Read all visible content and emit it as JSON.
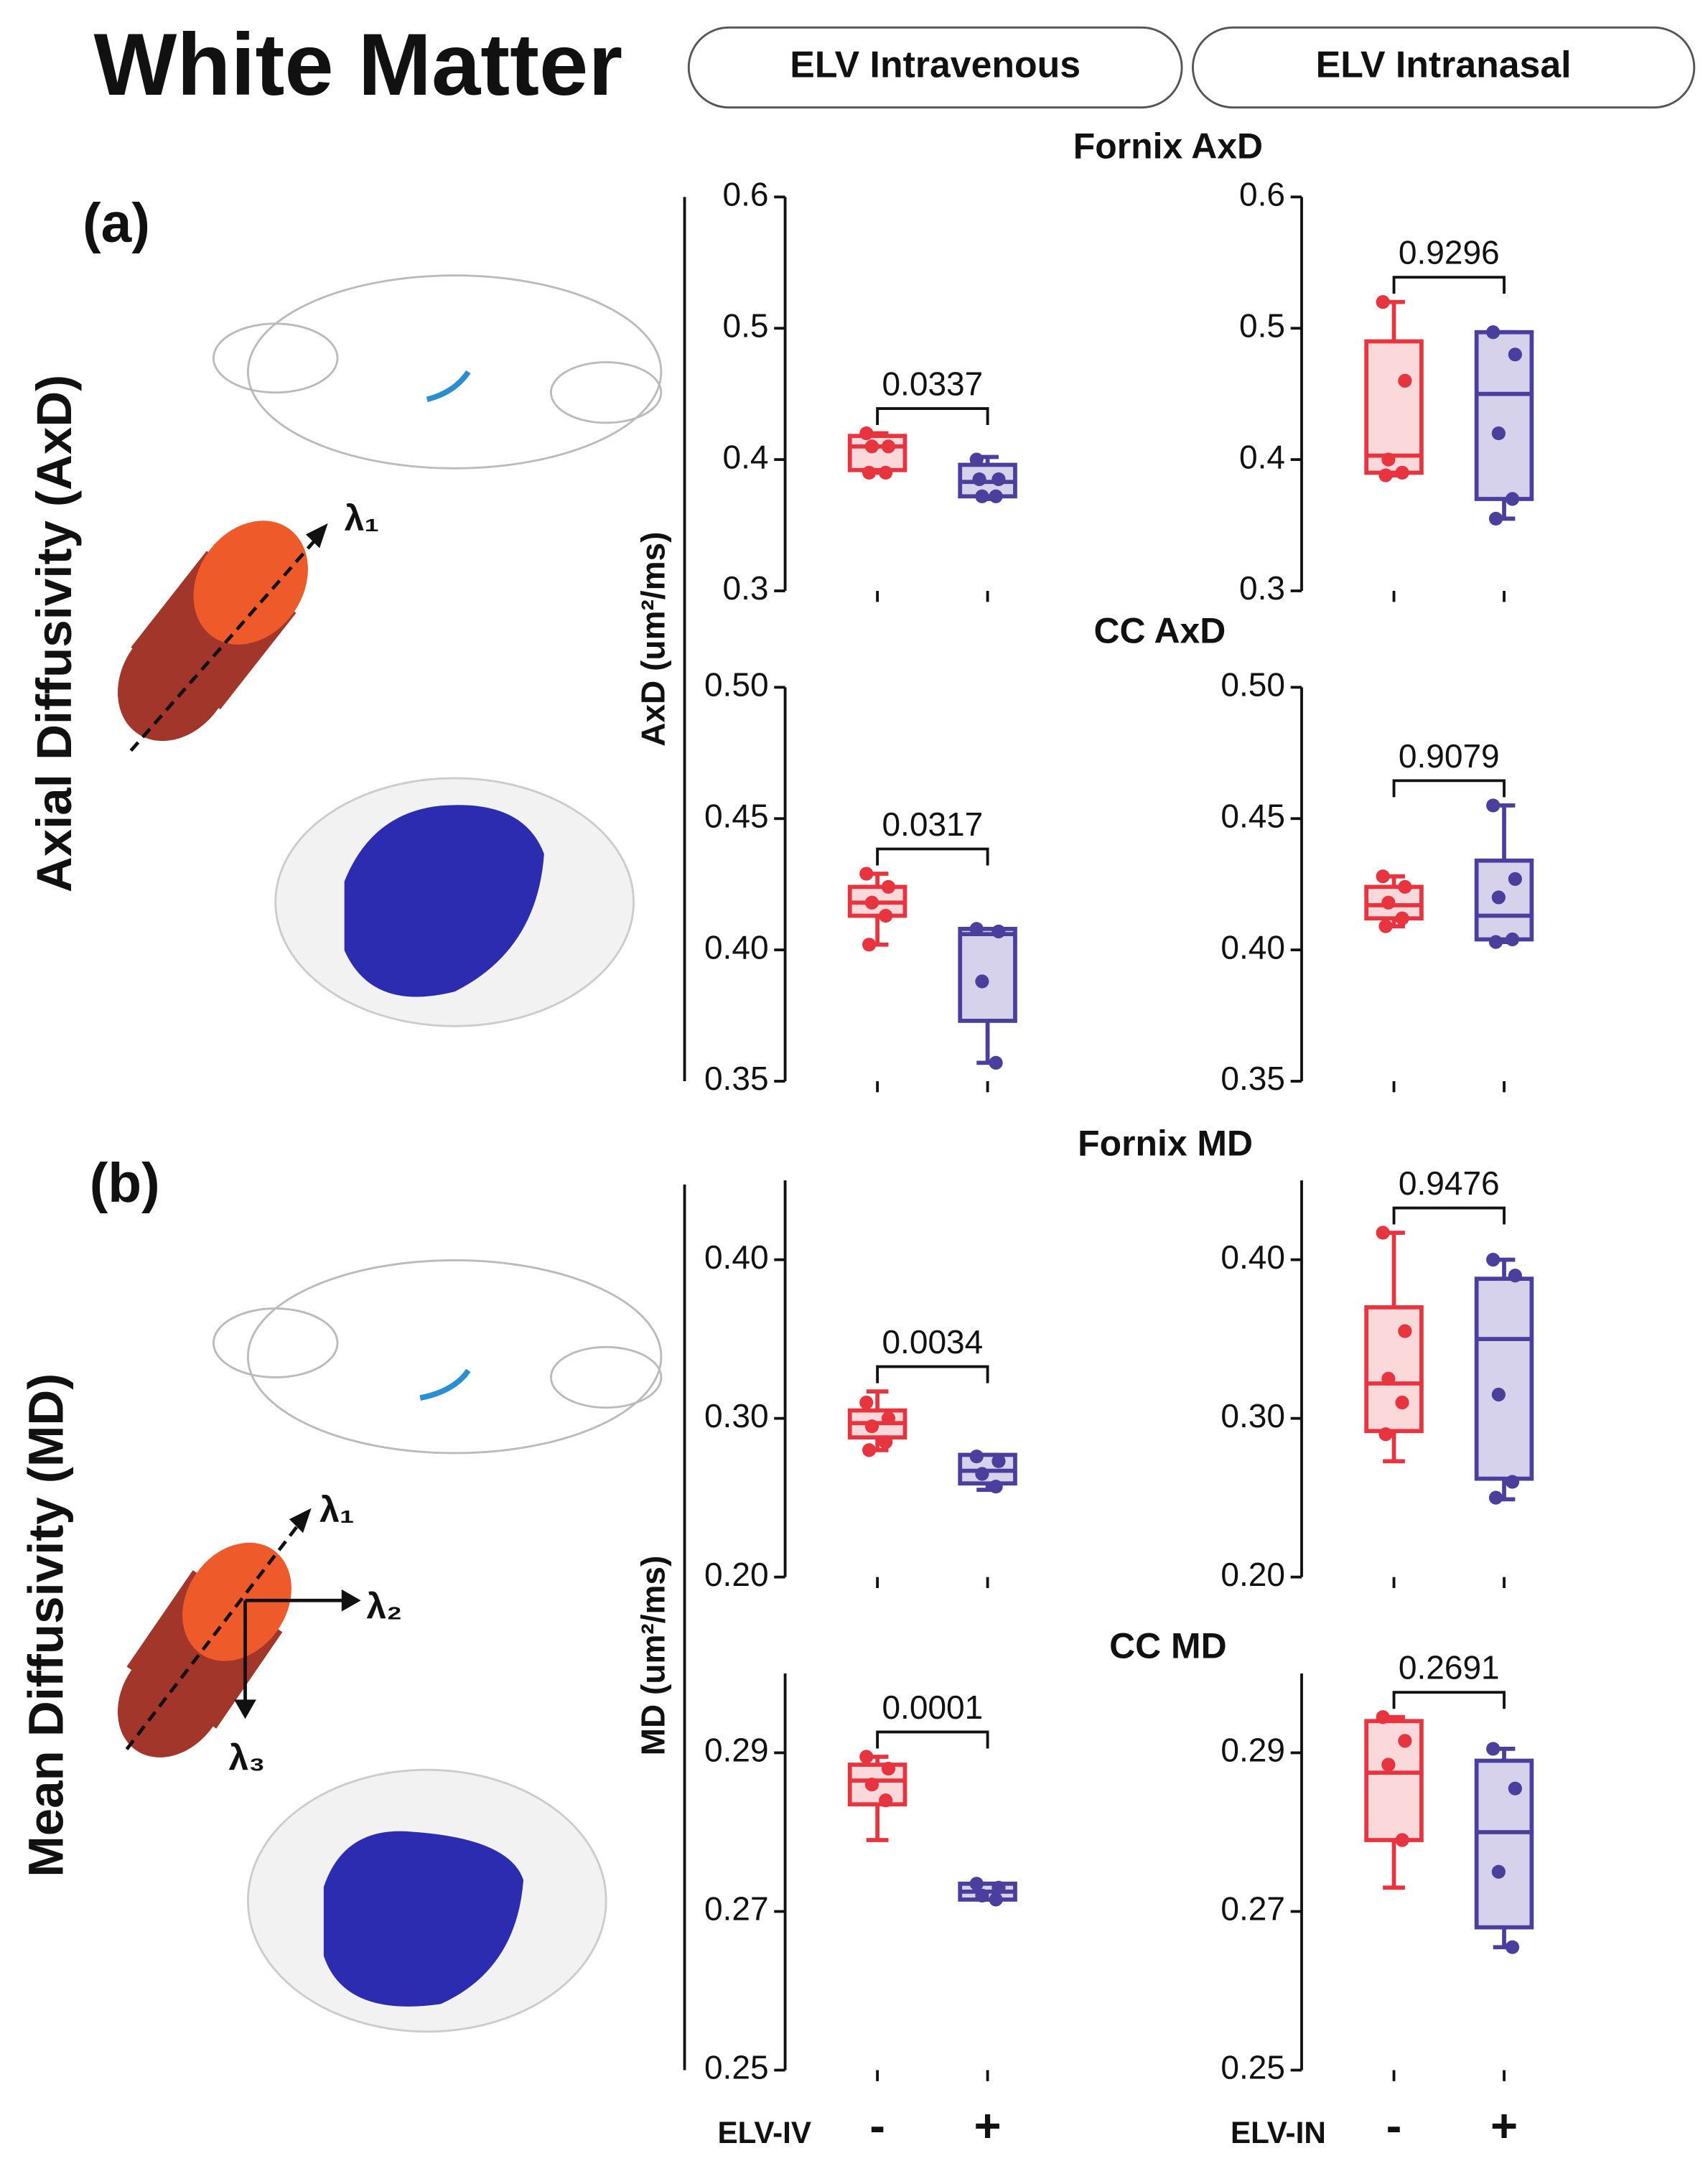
{
  "title": "White Matter",
  "headers": [
    "ELV Intravenous",
    "ELV Intranasal"
  ],
  "panel_labels": [
    "(a)",
    "(b)"
  ],
  "section_labels": [
    "Axial Diffusivity (AxD)",
    "Mean Diffusivity (MD)"
  ],
  "y_labels": [
    "AxD (um²/ms)",
    "MD (um²/ms)"
  ],
  "row_titles": [
    "Fornix AxD",
    "CC AxD",
    "Fornix MD",
    "CC MD"
  ],
  "lambda_labels": [
    "λ₁",
    "λ₂",
    "λ₃"
  ],
  "x_axis": {
    "labels": [
      "ELV-IV",
      "ELV-IN"
    ],
    "categories": [
      "-",
      "+"
    ]
  },
  "chart_data": [
    {
      "type": "box",
      "annotation": 0.0337,
      "ylim": [
        0.3,
        0.6
      ],
      "yticks": [
        0.3,
        0.4,
        0.5,
        0.6
      ],
      "series": [
        {
          "color": "#e8343f",
          "min": 0.39,
          "q1": 0.392,
          "median": 0.41,
          "q3": 0.418,
          "max": 0.42,
          "points": [
            0.42,
            0.41,
            0.41,
            0.39,
            0.39
          ]
        },
        {
          "color": "#4b3f9e",
          "min": 0.37,
          "q1": 0.372,
          "median": 0.383,
          "q3": 0.396,
          "max": 0.402,
          "points": [
            0.4,
            0.385,
            0.372,
            0.372,
            0.385
          ]
        }
      ]
    },
    {
      "type": "box",
      "annotation": 0.9296,
      "ylim": [
        0.3,
        0.6
      ],
      "yticks": [
        0.3,
        0.4,
        0.5,
        0.6
      ],
      "series": [
        {
          "color": "#e8343f",
          "min": 0.388,
          "q1": 0.39,
          "median": 0.403,
          "q3": 0.49,
          "max": 0.52,
          "points": [
            0.52,
            0.46,
            0.4,
            0.39,
            0.388
          ]
        },
        {
          "color": "#4b3f9e",
          "min": 0.355,
          "q1": 0.37,
          "median": 0.45,
          "q3": 0.497,
          "max": 0.497,
          "points": [
            0.497,
            0.48,
            0.42,
            0.37,
            0.355
          ]
        }
      ]
    },
    {
      "type": "box",
      "annotation": 0.0317,
      "ylim": [
        0.35,
        0.5
      ],
      "yticks": [
        {
          "value": 0.35,
          "label": "0.35"
        },
        {
          "value": 0.4,
          "label": "0.40"
        },
        {
          "value": 0.45,
          "label": "0.45"
        },
        {
          "value": 0.5,
          "label": "0.50"
        }
      ],
      "series": [
        {
          "color": "#e8343f",
          "min": 0.402,
          "q1": 0.413,
          "median": 0.418,
          "q3": 0.424,
          "max": 0.429,
          "points": [
            0.429,
            0.424,
            0.418,
            0.413,
            0.402
          ]
        },
        {
          "color": "#4b3f9e",
          "min": 0.357,
          "q1": 0.373,
          "median": 0.406,
          "q3": 0.408,
          "max": 0.408,
          "points": [
            0.408,
            0.407,
            0.388,
            0.357
          ]
        }
      ]
    },
    {
      "type": "box",
      "annotation": 0.9079,
      "ylim": [
        0.35,
        0.5
      ],
      "yticks": [
        {
          "value": 0.35,
          "label": "0.35"
        },
        {
          "value": 0.4,
          "label": "0.40"
        },
        {
          "value": 0.45,
          "label": "0.45"
        },
        {
          "value": 0.5,
          "label": "0.50"
        }
      ],
      "series": [
        {
          "color": "#e8343f",
          "min": 0.409,
          "q1": 0.412,
          "median": 0.417,
          "q3": 0.424,
          "max": 0.428,
          "points": [
            0.428,
            0.424,
            0.418,
            0.412,
            0.409
          ]
        },
        {
          "color": "#4b3f9e",
          "min": 0.403,
          "q1": 0.404,
          "median": 0.413,
          "q3": 0.434,
          "max": 0.455,
          "points": [
            0.455,
            0.427,
            0.42,
            0.404,
            0.403
          ]
        }
      ]
    },
    {
      "type": "box",
      "annotation": 0.0034,
      "ylim": [
        0.2,
        0.45
      ],
      "yticks": [
        {
          "value": 0.2,
          "label": "0.20"
        },
        {
          "value": 0.3,
          "label": "0.30"
        },
        {
          "value": 0.4,
          "label": "0.40"
        }
      ],
      "series": [
        {
          "color": "#e8343f",
          "min": 0.28,
          "q1": 0.288,
          "median": 0.297,
          "q3": 0.305,
          "max": 0.317,
          "points": [
            0.31,
            0.3,
            0.295,
            0.285,
            0.28
          ]
        },
        {
          "color": "#4b3f9e",
          "min": 0.255,
          "q1": 0.259,
          "median": 0.267,
          "q3": 0.277,
          "max": 0.277,
          "points": [
            0.276,
            0.273,
            0.265,
            0.257
          ]
        }
      ]
    },
    {
      "type": "box",
      "annotation": 0.9476,
      "ylim": [
        0.2,
        0.45
      ],
      "yticks": [
        {
          "value": 0.2,
          "label": "0.20"
        },
        {
          "value": 0.3,
          "label": "0.30"
        },
        {
          "value": 0.4,
          "label": "0.40"
        }
      ],
      "series": [
        {
          "color": "#e8343f",
          "min": 0.273,
          "q1": 0.292,
          "median": 0.322,
          "q3": 0.37,
          "max": 0.417,
          "points": [
            0.417,
            0.355,
            0.325,
            0.31,
            0.29
          ]
        },
        {
          "color": "#4b3f9e",
          "min": 0.249,
          "q1": 0.262,
          "median": 0.35,
          "q3": 0.388,
          "max": 0.4,
          "points": [
            0.4,
            0.39,
            0.315,
            0.26,
            0.25
          ]
        }
      ]
    },
    {
      "type": "box",
      "annotation": 0.0001,
      "ylim": [
        0.25,
        0.3
      ],
      "yticks": [
        0.25,
        0.27,
        0.29
      ],
      "series": [
        {
          "color": "#e8343f",
          "min": 0.279,
          "q1": 0.2835,
          "median": 0.2865,
          "q3": 0.2885,
          "max": 0.2895,
          "points": [
            0.2895,
            0.288,
            0.286,
            0.284
          ]
        },
        {
          "color": "#4b3f9e",
          "min": 0.2715,
          "q1": 0.2715,
          "median": 0.2725,
          "q3": 0.2735,
          "max": 0.2735,
          "points": [
            0.2735,
            0.273,
            0.272,
            0.2715
          ]
        }
      ]
    },
    {
      "type": "box",
      "annotation": 0.2691,
      "ylim": [
        0.25,
        0.3
      ],
      "yticks": [
        0.25,
        0.27,
        0.29
      ],
      "series": [
        {
          "color": "#e8343f",
          "min": 0.273,
          "q1": 0.279,
          "median": 0.2875,
          "q3": 0.294,
          "max": 0.2945,
          "points": [
            0.2945,
            0.2915,
            0.2885,
            0.279
          ]
        },
        {
          "color": "#4b3f9e",
          "min": 0.2655,
          "q1": 0.268,
          "median": 0.28,
          "q3": 0.289,
          "max": 0.2905,
          "points": [
            0.2905,
            0.2855,
            0.275,
            0.2655
          ]
        }
      ]
    }
  ]
}
